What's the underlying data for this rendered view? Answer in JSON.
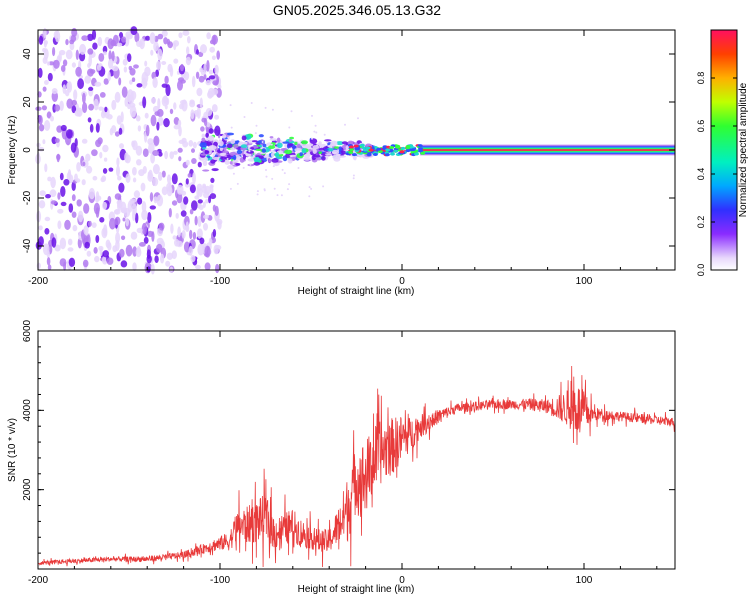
{
  "title": "GN05.2025.346.05.13.G32",
  "colors": {
    "snr_line": "#e83a3a",
    "spectrum_center": "#ff2050",
    "scatter_light": "#e6d6fb",
    "scatter_mid": "#b27af0",
    "scatter_dark": "#6a12e8",
    "scatter_cyan": "#20d8d0",
    "scatter_blue": "#3050ff",
    "scatter_green": "#30ff40"
  },
  "chart_data": [
    {
      "type": "heatmap",
      "title": "GN05.2025.346.05.13.G32",
      "xlabel": "Height of straight line (km)",
      "ylabel": "Frequency (Hz)",
      "xlim": [
        -200,
        150
      ],
      "ylim": [
        -50,
        50
      ],
      "x_ticks": [
        -200,
        -100,
        0,
        100
      ],
      "x_tick_labels": [
        "-200",
        "-100",
        "0",
        "100"
      ],
      "y_ticks": [
        -40,
        -20,
        0,
        20,
        40
      ],
      "y_tick_labels": [
        "-40",
        "-20",
        "0",
        "20",
        "40"
      ],
      "description_regions": [
        {
          "x_range": [
            -200,
            -100
          ],
          "freq_spread": 50,
          "amplitude": "low, scattered noise"
        },
        {
          "x_range": [
            -100,
            -20
          ],
          "freq_spread": 8,
          "amplitude": "medium, converging to 0 Hz"
        },
        {
          "x_range": [
            -20,
            150
          ],
          "freq_spread": 1.5,
          "amplitude": "high, narrow line at 0 Hz"
        }
      ],
      "colorbar": {
        "label": "Normalized spectral amplitude",
        "range": [
          0,
          1
        ],
        "ticks": [
          0.0,
          0.2,
          0.4,
          0.6,
          0.8
        ],
        "tick_labels": [
          "0.0",
          "0.2",
          "0.4",
          "0.6",
          "0.8"
        ]
      }
    },
    {
      "type": "line",
      "xlabel": "Height of straight line (km)",
      "ylabel": "SNR (10 * v/v)",
      "xlim": [
        -200,
        150
      ],
      "ylim": [
        0,
        6000
      ],
      "x_ticks": [
        -200,
        -100,
        0,
        100
      ],
      "x_tick_labels": [
        "-200",
        "-100",
        "0",
        "100"
      ],
      "y_ticks": [
        2000,
        4000,
        6000
      ],
      "y_tick_labels": [
        "2000",
        "4000",
        "6000"
      ],
      "series": [
        {
          "name": "SNR",
          "x": [
            -200,
            -180,
            -160,
            -140,
            -120,
            -110,
            -100,
            -95,
            -90,
            -85,
            -80,
            -75,
            -70,
            -65,
            -60,
            -55,
            -50,
            -45,
            -40,
            -35,
            -30,
            -25,
            -20,
            -15,
            -10,
            -5,
            0,
            5,
            10,
            15,
            20,
            25,
            30,
            40,
            50,
            60,
            70,
            80,
            90,
            95,
            100,
            105,
            110,
            120,
            130,
            140,
            150
          ],
          "y": [
            150,
            200,
            250,
            250,
            350,
            500,
            650,
            700,
            1100,
            1100,
            1200,
            1300,
            900,
            1000,
            1100,
            900,
            800,
            700,
            700,
            1100,
            1500,
            2300,
            2300,
            2800,
            3000,
            3100,
            3300,
            3400,
            3600,
            3700,
            3850,
            3950,
            4050,
            4100,
            4150,
            4150,
            4150,
            4100,
            4050,
            4100,
            3950,
            3900,
            3900,
            3850,
            3800,
            3750,
            3700
          ],
          "noise": [
            80,
            100,
            100,
            120,
            150,
            200,
            300,
            400,
            700,
            800,
            900,
            1000,
            700,
            700,
            700,
            600,
            500,
            500,
            500,
            800,
            1400,
            1400,
            1600,
            1400,
            1300,
            1200,
            1000,
            700,
            500,
            400,
            300,
            250,
            200,
            200,
            200,
            200,
            250,
            300,
            700,
            1200,
            900,
            300,
            250,
            200,
            200,
            200,
            200
          ]
        }
      ]
    }
  ]
}
